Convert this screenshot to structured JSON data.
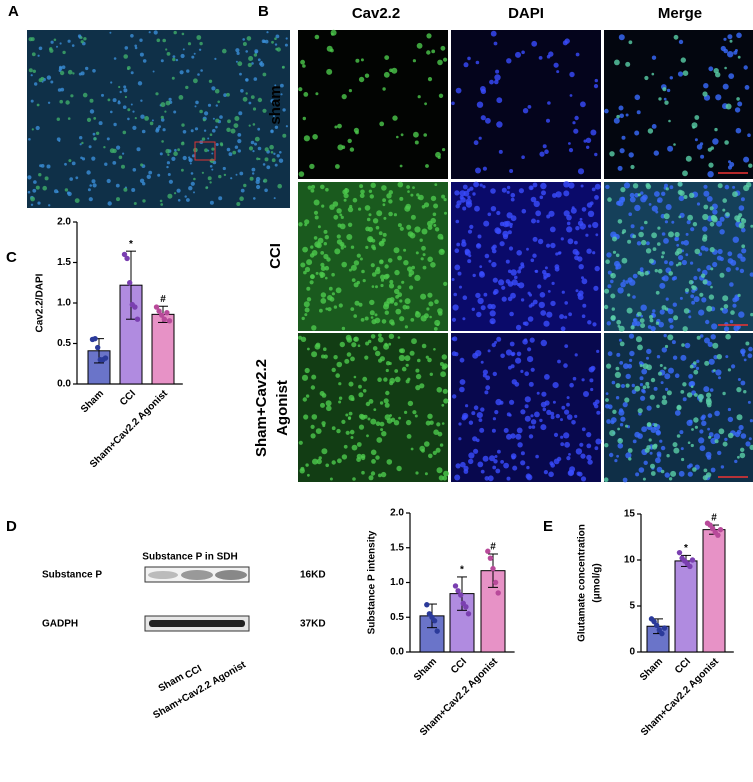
{
  "panel_labels": [
    "A",
    "B",
    "C",
    "D",
    "E"
  ],
  "micrograph": {
    "columns": [
      "Cav2.2",
      "DAPI",
      "Merge"
    ],
    "rows": [
      [
        "sham"
      ],
      [
        "CCI"
      ],
      [
        "Sham+Cav2.2",
        "Agonist"
      ]
    ]
  },
  "blot": {
    "title": "Substance P in SDH",
    "bands": [
      "Substance P",
      "GADPH"
    ],
    "sizes": [
      "16KD",
      "37KD"
    ],
    "lanes": [
      "Sham",
      "CCI",
      "Sham+Cav2.2 Agonist"
    ]
  },
  "chart_data": [
    {
      "type": "bar",
      "ylabel": [
        "Cav2.2/DAPI"
      ],
      "categories": [
        "Sham",
        "CCI",
        "Sham+Cav2.2 Agonist"
      ],
      "values": [
        0.41,
        1.22,
        0.86
      ],
      "errors": [
        0.15,
        0.42,
        0.1
      ],
      "points": [
        [
          0.55,
          0.56,
          0.45,
          0.3,
          0.3,
          0.32
        ],
        [
          1.6,
          1.55,
          1.25,
          0.98,
          0.95,
          0.8
        ],
        [
          0.95,
          0.9,
          0.85,
          0.8,
          0.88,
          0.78
        ]
      ],
      "annotations": [
        null,
        "*",
        "#"
      ],
      "colors": [
        "#6a74c9",
        "#b08be0",
        "#e792c6"
      ],
      "point_colors": [
        "#2b3a9a",
        "#7a3fb0",
        "#b84a9a"
      ],
      "ylim": [
        0,
        2
      ],
      "yticks": [
        {
          "value": 0,
          "label": "0.0"
        },
        0.5,
        {
          "value": 1,
          "label": "1.0"
        },
        1.5,
        {
          "value": 2,
          "label": "2.0"
        }
      ]
    },
    {
      "type": "bar",
      "ylabel": [
        "Substance P intensity"
      ],
      "categories": [
        "Sham",
        "CCI",
        "Sham+Cav2.2 Agonist"
      ],
      "values": [
        0.52,
        0.84,
        1.17
      ],
      "errors": [
        0.17,
        0.24,
        0.24
      ],
      "points": [
        [
          0.68,
          0.55,
          0.5,
          0.45,
          0.3
        ],
        [
          0.95,
          0.88,
          0.82,
          0.7,
          0.65,
          0.55
        ],
        [
          1.45,
          1.35,
          1.2,
          1.0,
          0.85
        ]
      ],
      "annotations": [
        null,
        "*",
        "#"
      ],
      "colors": [
        "#6a74c9",
        "#b08be0",
        "#e792c6"
      ],
      "point_colors": [
        "#2b3a9a",
        "#7a3fb0",
        "#b84a9a"
      ],
      "ylim": [
        0,
        2
      ],
      "yticks": [
        {
          "value": 0,
          "label": "0.0"
        },
        0.5,
        {
          "value": 1,
          "label": "1.0"
        },
        1.5,
        {
          "value": 2,
          "label": "2.0"
        }
      ]
    },
    {
      "type": "bar",
      "ylabel": [
        "Glutamate concentration",
        "(μmol/g)"
      ],
      "categories": [
        "Sham",
        "CCI",
        "Sham+Cav2.2 Agonist"
      ],
      "values": [
        2.8,
        9.9,
        13.3
      ],
      "errors": [
        0.8,
        0.6,
        0.5
      ],
      "points": [
        [
          3.6,
          3.3,
          2.9,
          2.4,
          2.0,
          2.6
        ],
        [
          10.8,
          10.2,
          9.9,
          9.6,
          9.3,
          10.0
        ],
        [
          14.0,
          13.8,
          13.4,
          13.0,
          12.7,
          13.3
        ]
      ],
      "annotations": [
        null,
        "*",
        "#"
      ],
      "colors": [
        "#6a74c9",
        "#b08be0",
        "#e792c6"
      ],
      "point_colors": [
        "#2b3a9a",
        "#7a3fb0",
        "#b84a9a"
      ],
      "ylim": [
        0,
        15
      ],
      "yticks": [
        0,
        5,
        10,
        15
      ]
    }
  ]
}
